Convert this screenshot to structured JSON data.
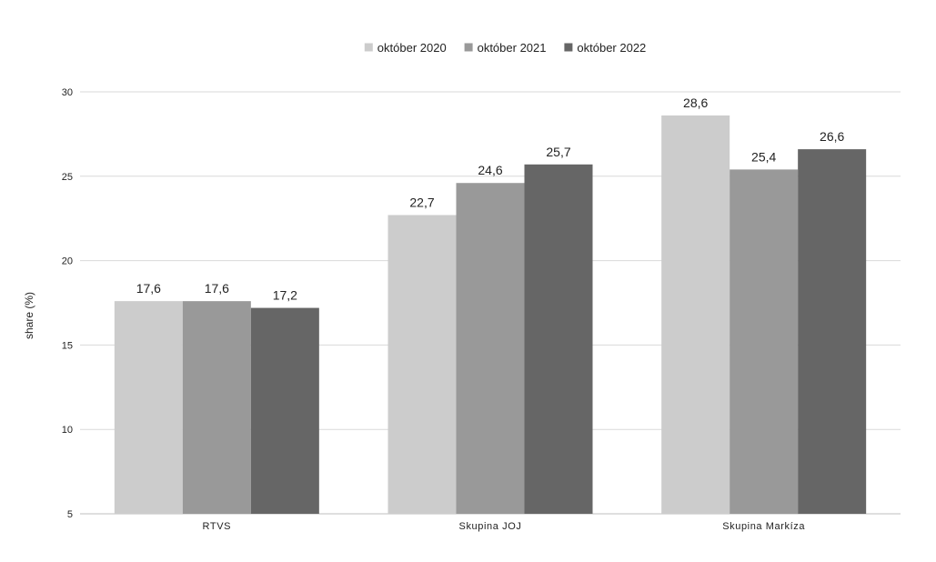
{
  "chart_data": {
    "type": "bar",
    "title": "",
    "xlabel": "",
    "ylabel": "share (%)",
    "ylim": [
      5,
      30
    ],
    "yticks": [
      5,
      10,
      15,
      20,
      25,
      30
    ],
    "grid": true,
    "legend_position": "top",
    "categories": [
      "RTVS",
      "Skupina JOJ",
      "Skupina Markíza"
    ],
    "series": [
      {
        "name": "október 2020",
        "color": "#cccccc",
        "values": [
          17.6,
          22.7,
          28.6
        ],
        "labels": [
          "17,6",
          "22,7",
          "28,6"
        ]
      },
      {
        "name": "október 2021",
        "color": "#999999",
        "values": [
          17.6,
          24.6,
          25.4
        ],
        "labels": [
          "17,6",
          "24,6",
          "25,4"
        ]
      },
      {
        "name": "október 2022",
        "color": "#666666",
        "values": [
          17.2,
          25.7,
          26.6
        ],
        "labels": [
          "17,2",
          "25,7",
          "26,6"
        ]
      }
    ],
    "colors": {
      "grid": "#d9d9d9",
      "axis": "#bfbfbf",
      "text": "#222222"
    }
  }
}
